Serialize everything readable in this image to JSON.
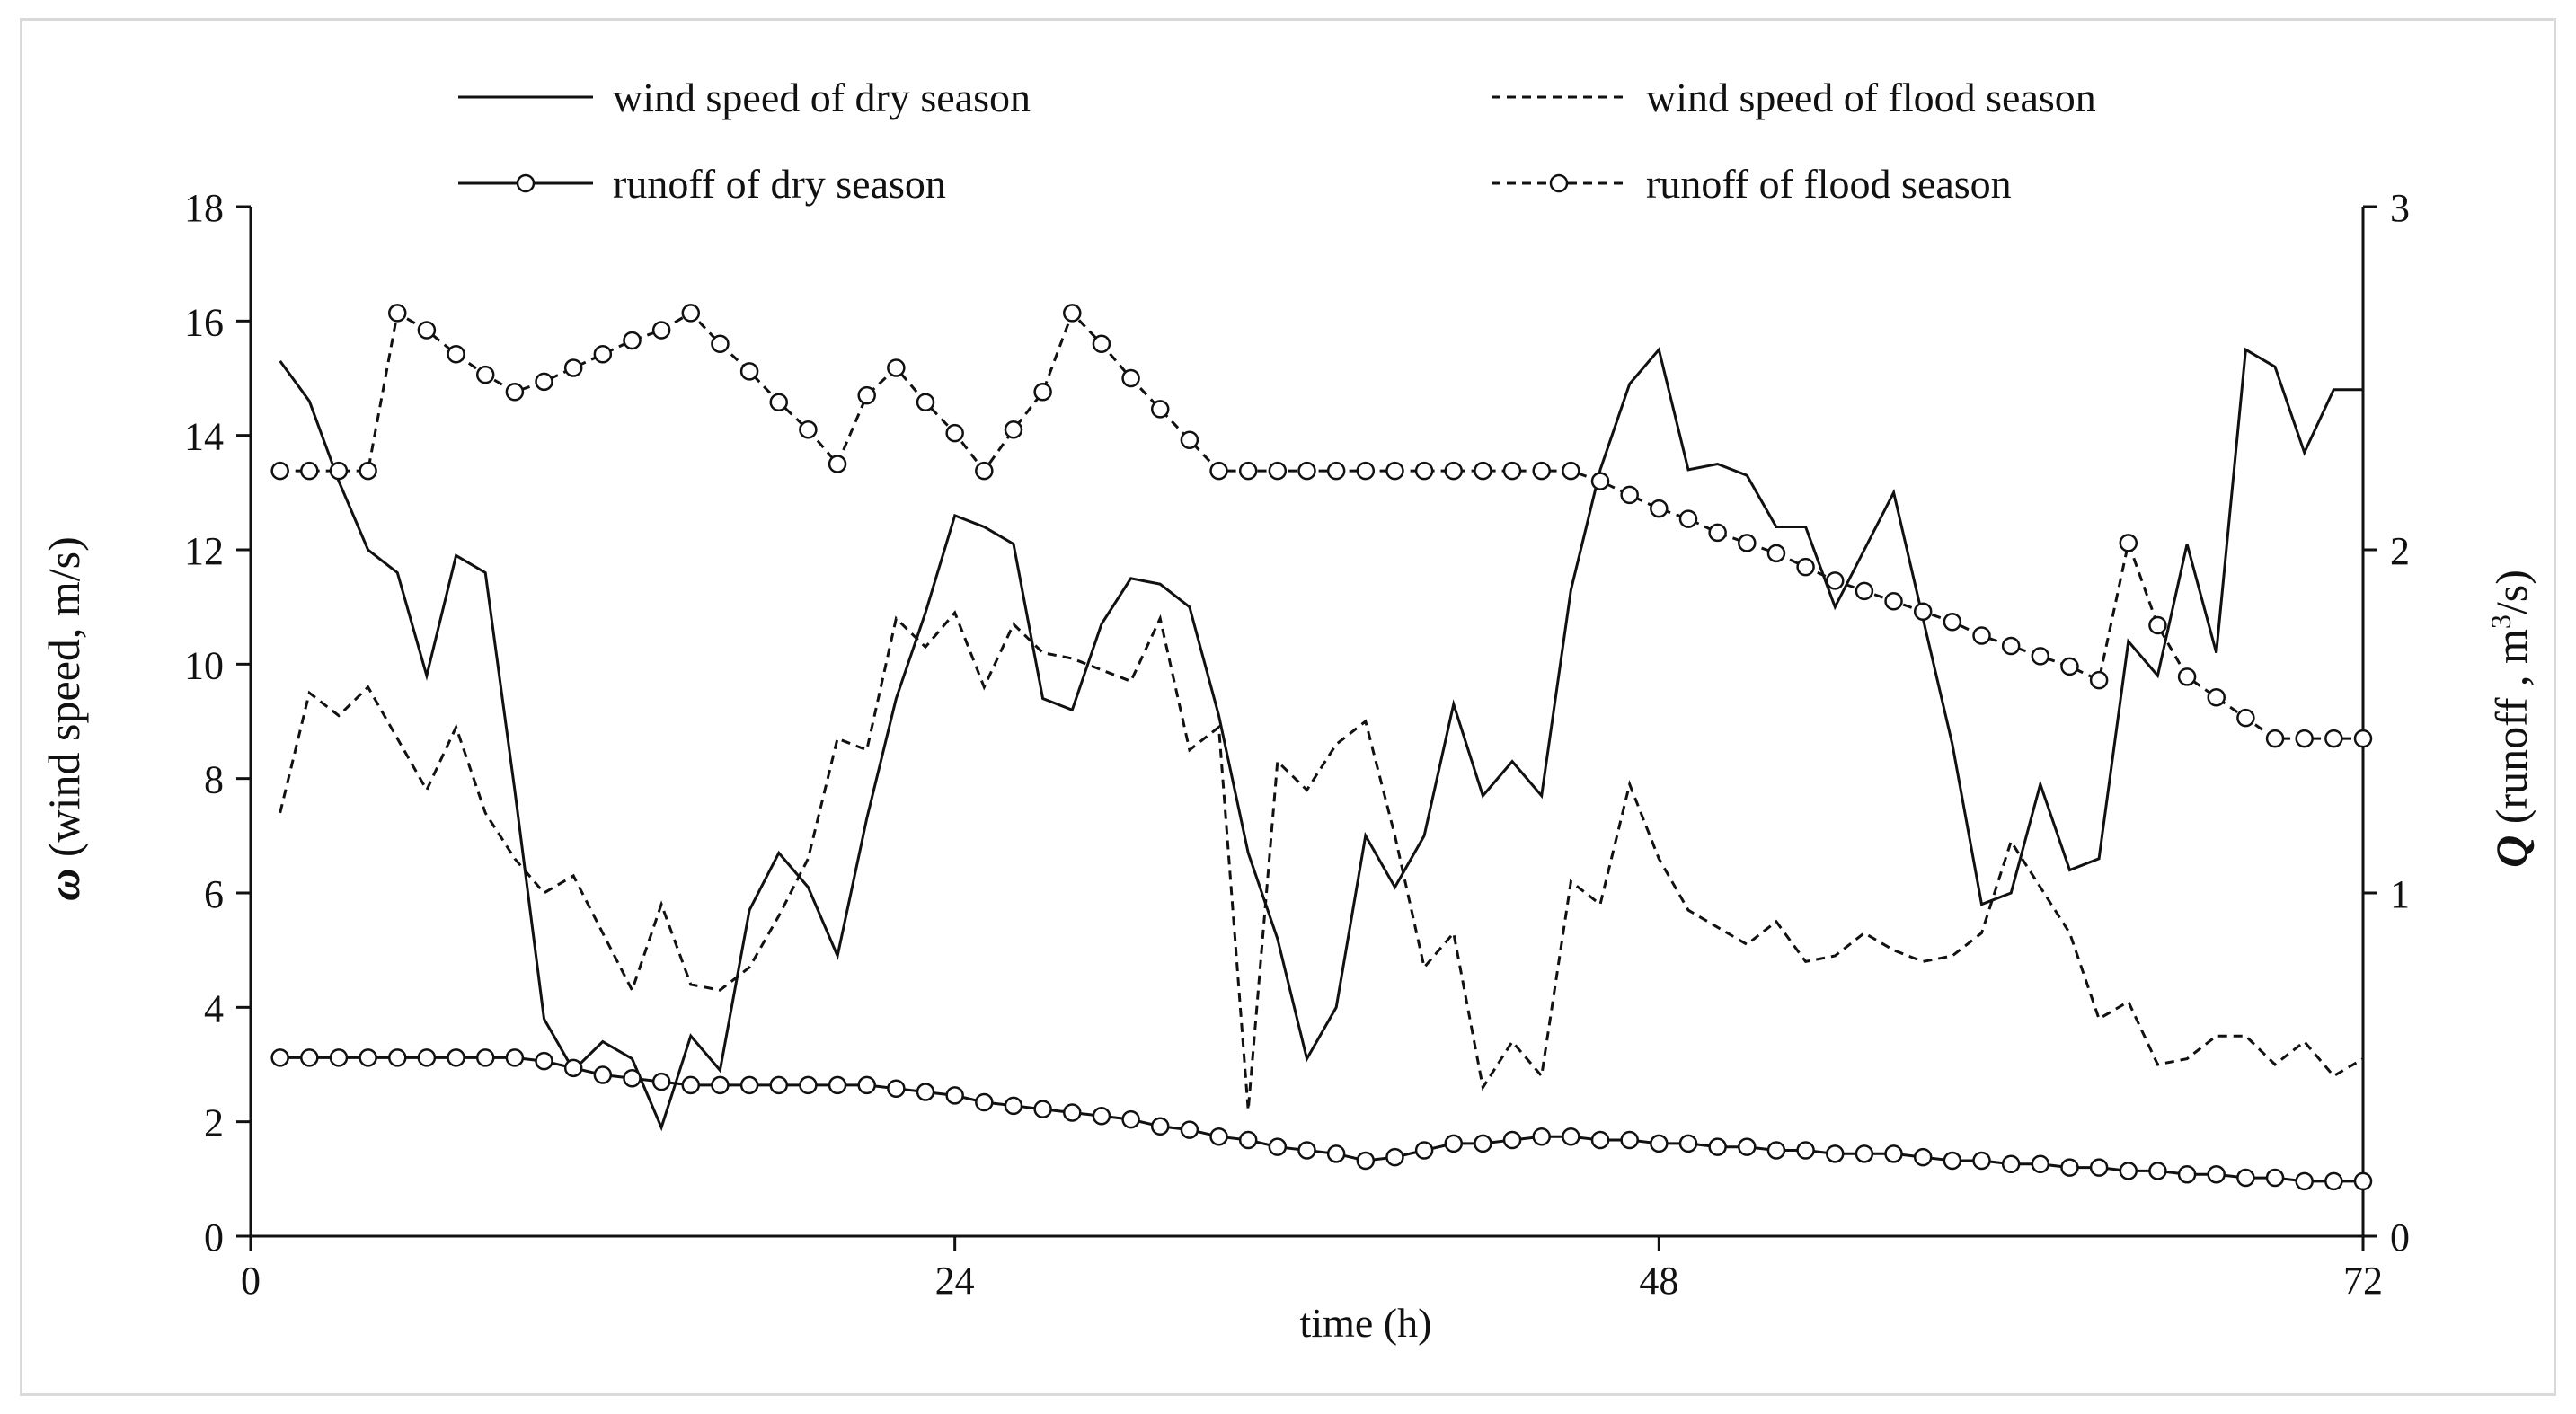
{
  "chart_data": {
    "type": "line",
    "xlabel": "time (h)",
    "ylabel_left": {
      "symbol": "ω",
      "text": " (wind  speed,  m/s)"
    },
    "ylabel_right": {
      "symbol": "Q",
      "text_pre": " (runoff , m",
      "sup": "3",
      "text_post": "/s)"
    },
    "xlim": [
      0,
      72
    ],
    "ylim_left": [
      0,
      18
    ],
    "ylim_right": [
      0,
      3
    ],
    "x_ticks": [
      0,
      24,
      48,
      72
    ],
    "y_ticks_left": [
      0,
      2,
      4,
      6,
      8,
      10,
      12,
      14,
      16,
      18
    ],
    "y_ticks_right": [
      0,
      1,
      2,
      3
    ],
    "x": [
      1,
      2,
      3,
      4,
      5,
      6,
      7,
      8,
      9,
      10,
      11,
      12,
      13,
      14,
      15,
      16,
      17,
      18,
      19,
      20,
      21,
      22,
      23,
      24,
      25,
      26,
      27,
      28,
      29,
      30,
      31,
      32,
      33,
      34,
      35,
      36,
      37,
      38,
      39,
      40,
      41,
      42,
      43,
      44,
      45,
      46,
      47,
      48,
      49,
      50,
      51,
      52,
      53,
      54,
      55,
      56,
      57,
      58,
      59,
      60,
      61,
      62,
      63,
      64,
      65,
      66,
      67,
      68,
      69,
      70,
      71,
      72
    ],
    "legend": [
      {
        "label": "wind speed of dry season",
        "style": "solid",
        "marker": false
      },
      {
        "label": "wind speed of flood season",
        "style": "dashed",
        "marker": false
      },
      {
        "label": "runoff of dry season",
        "style": "solid",
        "marker": true
      },
      {
        "label": "runoff of flood season",
        "style": "dashed",
        "marker": true
      }
    ],
    "series": [
      {
        "name": "wind speed of dry season",
        "axis": "left",
        "style": "solid",
        "marker": false,
        "values": [
          15.3,
          14.6,
          13.2,
          12.0,
          11.6,
          9.8,
          11.9,
          11.6,
          7.8,
          3.8,
          2.9,
          3.4,
          3.1,
          1.9,
          3.5,
          2.9,
          5.7,
          6.7,
          6.1,
          4.9,
          7.3,
          9.4,
          10.9,
          12.6,
          12.4,
          12.1,
          9.4,
          9.2,
          10.7,
          11.5,
          11.4,
          11.0,
          9.1,
          6.7,
          5.2,
          3.1,
          4.0,
          7.0,
          6.1,
          7.0,
          9.3,
          7.7,
          8.3,
          7.7,
          11.3,
          13.4,
          14.9,
          15.5,
          13.4,
          13.5,
          13.3,
          12.4,
          12.4,
          11.0,
          12.0,
          13.0,
          10.8,
          8.6,
          5.8,
          6.0,
          7.9,
          6.4,
          6.6,
          10.4,
          9.8,
          12.1,
          10.2,
          15.5,
          15.2,
          13.7,
          14.8,
          14.8
        ]
      },
      {
        "name": "wind speed of flood season",
        "axis": "left",
        "style": "dashed",
        "marker": false,
        "values": [
          7.4,
          9.5,
          9.1,
          9.6,
          8.7,
          7.8,
          8.9,
          7.4,
          6.6,
          6.0,
          6.3,
          5.3,
          4.3,
          5.8,
          4.4,
          4.3,
          4.7,
          5.6,
          6.6,
          8.7,
          8.5,
          10.8,
          10.3,
          10.9,
          9.6,
          10.7,
          10.2,
          10.1,
          9.9,
          9.7,
          10.8,
          8.5,
          8.9,
          2.2,
          8.3,
          7.8,
          8.6,
          9.0,
          7.0,
          4.7,
          5.3,
          2.6,
          3.4,
          2.8,
          6.2,
          5.8,
          7.9,
          6.6,
          5.7,
          5.4,
          5.1,
          5.5,
          4.8,
          4.9,
          5.3,
          5.0,
          4.8,
          4.9,
          5.3,
          6.9,
          6.1,
          5.3,
          3.8,
          4.1,
          3.0,
          3.1,
          3.5,
          3.5,
          3.0,
          3.4,
          2.8,
          3.1
        ]
      },
      {
        "name": "runoff of dry season",
        "axis": "right",
        "style": "solid",
        "marker": true,
        "values": [
          0.52,
          0.52,
          0.52,
          0.52,
          0.52,
          0.52,
          0.52,
          0.52,
          0.52,
          0.51,
          0.49,
          0.47,
          0.46,
          0.45,
          0.44,
          0.44,
          0.44,
          0.44,
          0.44,
          0.44,
          0.44,
          0.43,
          0.42,
          0.41,
          0.39,
          0.38,
          0.37,
          0.36,
          0.35,
          0.34,
          0.32,
          0.31,
          0.29,
          0.28,
          0.26,
          0.25,
          0.24,
          0.22,
          0.23,
          0.25,
          0.27,
          0.27,
          0.28,
          0.29,
          0.29,
          0.28,
          0.28,
          0.27,
          0.27,
          0.26,
          0.26,
          0.25,
          0.25,
          0.24,
          0.24,
          0.24,
          0.23,
          0.22,
          0.22,
          0.21,
          0.21,
          0.2,
          0.2,
          0.19,
          0.19,
          0.18,
          0.18,
          0.17,
          0.17,
          0.16,
          0.16,
          0.16
        ]
      },
      {
        "name": "runoff of flood season",
        "axis": "right",
        "style": "dashed",
        "marker": true,
        "values": [
          2.23,
          2.23,
          2.23,
          2.23,
          2.69,
          2.64,
          2.57,
          2.51,
          2.46,
          2.49,
          2.53,
          2.57,
          2.61,
          2.64,
          2.69,
          2.6,
          2.52,
          2.43,
          2.35,
          2.25,
          2.45,
          2.53,
          2.43,
          2.34,
          2.23,
          2.35,
          2.46,
          2.69,
          2.6,
          2.5,
          2.41,
          2.32,
          2.23,
          2.23,
          2.23,
          2.23,
          2.23,
          2.23,
          2.23,
          2.23,
          2.23,
          2.23,
          2.23,
          2.23,
          2.23,
          2.2,
          2.16,
          2.12,
          2.09,
          2.05,
          2.02,
          1.99,
          1.95,
          1.91,
          1.88,
          1.85,
          1.82,
          1.79,
          1.75,
          1.72,
          1.69,
          1.66,
          1.62,
          2.02,
          1.78,
          1.63,
          1.57,
          1.51,
          1.45,
          1.45,
          1.45,
          1.45
        ]
      }
    ]
  }
}
